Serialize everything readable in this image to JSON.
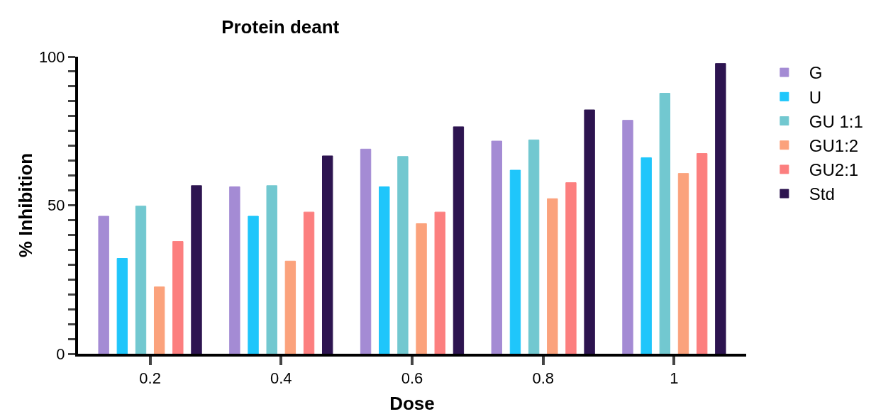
{
  "chart_data": {
    "type": "bar",
    "title": "Protein deant",
    "xlabel": "Dose",
    "ylabel": "% Inhibition",
    "categories": [
      "0.2",
      "0.4",
      "0.6",
      "0.8",
      "1"
    ],
    "series": [
      {
        "name": "G",
        "color": "#a48bd4",
        "values": [
          46.3,
          56.2,
          68.9,
          71.6,
          78.6
        ]
      },
      {
        "name": "U",
        "color": "#1fc6fb",
        "values": [
          32.1,
          46.3,
          56.2,
          61.8,
          66.0
        ]
      },
      {
        "name": "GU 1:1",
        "color": "#72c8d0",
        "values": [
          49.7,
          56.6,
          66.4,
          72.0,
          87.7
        ]
      },
      {
        "name": "GU1:2",
        "color": "#fba27c",
        "values": [
          22.5,
          31.2,
          43.8,
          52.2,
          60.7
        ]
      },
      {
        "name": "GU2:1",
        "color": "#fc7f7f",
        "values": [
          37.8,
          47.7,
          47.7,
          57.6,
          67.4
        ]
      },
      {
        "name": "Std",
        "color": "#2d1450",
        "values": [
          56.6,
          66.6,
          76.4,
          82.1,
          97.7
        ]
      }
    ],
    "ylim": [
      0,
      100
    ],
    "yticks": [
      0,
      {
        "value": 5,
        "label": null
      },
      {
        "value": 10,
        "label": null
      },
      {
        "value": 15,
        "label": null
      },
      {
        "value": 20,
        "label": null
      },
      {
        "value": 25,
        "label": null
      },
      {
        "value": 30,
        "label": null
      },
      {
        "value": 35,
        "label": null
      },
      {
        "value": 40,
        "label": null
      },
      {
        "value": 45,
        "label": null
      },
      50,
      {
        "value": 55,
        "label": null
      },
      {
        "value": 60,
        "label": null
      },
      {
        "value": 65,
        "label": null
      },
      {
        "value": 70,
        "label": null
      },
      {
        "value": 75,
        "label": null
      },
      {
        "value": 80,
        "label": null
      },
      {
        "value": 85,
        "label": null
      },
      {
        "value": 90,
        "label": null
      },
      {
        "value": 95,
        "label": null
      },
      100
    ],
    "grid": false,
    "legend": "right"
  }
}
